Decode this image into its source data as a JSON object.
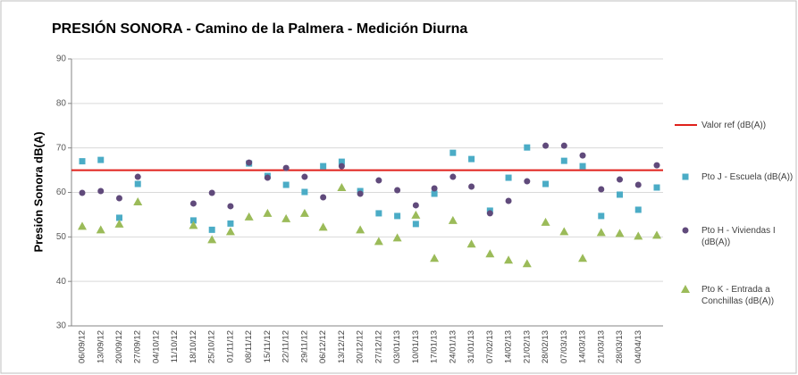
{
  "chart_data": {
    "type": "scatter",
    "title": "PRESIÓN SONORA  - Camino de la Palmera - Medición Diurna",
    "y_label": "Presión Sonora dB(A)",
    "categories": [
      "06/09/12",
      "13/09/12",
      "20/09/12",
      "27/09/12",
      "04/10/12",
      "11/10/12",
      "18/10/12",
      "25/10/12",
      "01/11/12",
      "08/11/12",
      "15/11/12",
      "22/11/12",
      "29/11/12",
      "06/12/12",
      "13/12/12",
      "20/12/12",
      "27/12/12",
      "03/01/13",
      "10/01/13",
      "17/01/13",
      "24/01/13",
      "31/01/13",
      "07/02/13",
      "14/02/13",
      "21/02/13",
      "28/02/13",
      "07/03/13",
      "14/03/13",
      "21/03/13",
      "28/03/13",
      "04/04/13",
      null
    ],
    "reference": {
      "name": "Valor ref (dB(A))",
      "value": 65,
      "color": "#e0201b"
    },
    "series": [
      {
        "name": "Pto J - Escuela (dB(A))",
        "color": "#4bacc6",
        "marker": "square",
        "values": [
          67,
          67.3,
          54.3,
          61.9,
          null,
          null,
          53.7,
          51.6,
          53,
          66.5,
          63.7,
          61.7,
          60.1,
          65.9,
          66.9,
          60.3,
          55.3,
          54.7,
          52.9,
          59.7,
          68.9,
          67.5,
          55.9,
          63.3,
          70.1,
          61.9,
          67.1,
          65.9,
          54.7,
          59.5,
          56.1,
          61.1
        ]
      },
      {
        "name": "Pto H - Viviendas I (dB(A))",
        "color": "#604a7b",
        "marker": "circle",
        "values": [
          59.9,
          60.3,
          58.7,
          63.5,
          null,
          null,
          57.5,
          59.9,
          56.9,
          66.7,
          63.3,
          65.5,
          63.5,
          58.9,
          65.9,
          59.7,
          62.7,
          60.5,
          57.1,
          60.9,
          63.5,
          61.3,
          55.3,
          58.1,
          62.5,
          70.5,
          70.5,
          68.3,
          60.7,
          62.9,
          61.7,
          66.1
        ]
      },
      {
        "name": "Pto K - Entrada a Conchillas (dB(A))",
        "color": "#9bbb59",
        "marker": "triangle",
        "values": [
          52.4,
          51.6,
          52.9,
          57.9,
          null,
          null,
          52.6,
          49.4,
          51.2,
          54.5,
          55.3,
          54.1,
          55.3,
          52.2,
          61.1,
          51.6,
          49,
          49.8,
          54.9,
          45.2,
          53.7,
          48.4,
          46.2,
          44.8,
          44,
          53.3,
          51.2,
          45.2,
          51,
          50.8,
          50.2,
          50.4
        ]
      }
    ],
    "ylim": [
      30,
      90
    ],
    "yticks": [
      30,
      40,
      50,
      60,
      70,
      80,
      90
    ],
    "grid": true
  }
}
